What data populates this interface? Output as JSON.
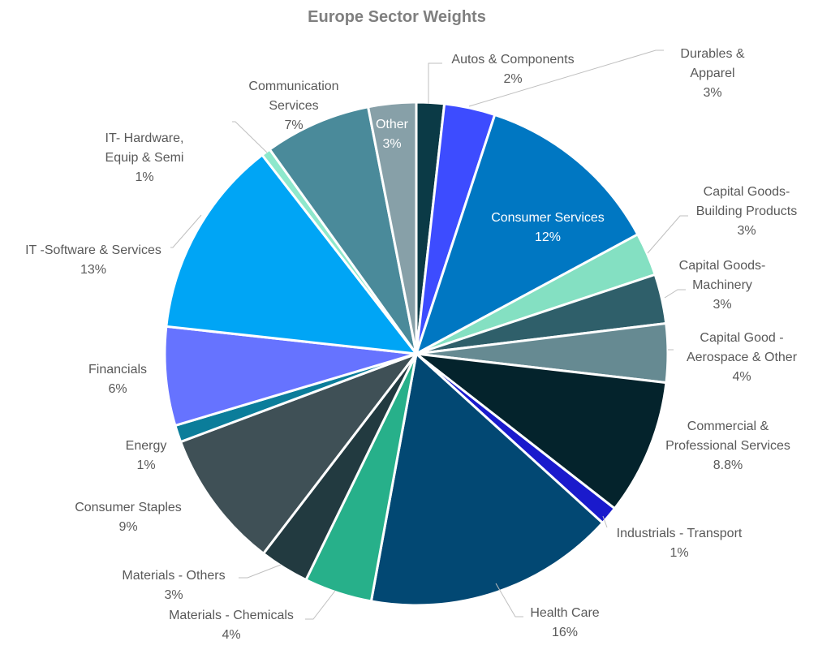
{
  "chart_data": {
    "type": "pie",
    "title": "Europe Sector Weights",
    "slices": [
      {
        "label": [
          "Autos & Components"
        ],
        "value_label": "2%",
        "value": 1.8,
        "color": "#0b3a46"
      },
      {
        "label": [
          "Durables &",
          "Apparel"
        ],
        "value_label": "3%",
        "value": 3.3,
        "color": "#3d4cff"
      },
      {
        "label": [
          "Consumer Services"
        ],
        "value_label": "12%",
        "value": 12.2,
        "color": "#0077c2"
      },
      {
        "label": [
          "Capital Goods-",
          "Building Products"
        ],
        "value_label": "3%",
        "value": 2.8,
        "color": "#84e0c2"
      },
      {
        "label": [
          "Capital Goods-",
          "Machinery"
        ],
        "value_label": "3%",
        "value": 3.2,
        "color": "#2f5f6a"
      },
      {
        "label": [
          "Capital Good -",
          "Aerospace & Other"
        ],
        "value_label": "4%",
        "value": 3.8,
        "color": "#668a92"
      },
      {
        "label": [
          "Commercial &",
          "Professional Services"
        ],
        "value_label": "8.8%",
        "value": 8.8,
        "color": "#04232c"
      },
      {
        "label": [
          "Industrials - Transport"
        ],
        "value_label": "1%",
        "value": 1.2,
        "color": "#1a1acc"
      },
      {
        "label": [
          "Health Care"
        ],
        "value_label": "16%",
        "value": 16.3,
        "color": "#024873"
      },
      {
        "label": [
          "Materials - Chemicals"
        ],
        "value_label": "4%",
        "value": 4.4,
        "color": "#27b08a"
      },
      {
        "label": [
          "Materials - Others"
        ],
        "value_label": "3%",
        "value": 3.2,
        "color": "#223a40"
      },
      {
        "label": [
          "Consumer Staples"
        ],
        "value_label": "9%",
        "value": 9.0,
        "color": "#3f5056"
      },
      {
        "label": [
          "Energy"
        ],
        "value_label": "1%",
        "value": 1.1,
        "color": "#0b7d9a"
      },
      {
        "label": [
          "Financials"
        ],
        "value_label": "6%",
        "value": 6.4,
        "color": "#6673ff"
      },
      {
        "label": [
          "IT -Software & Services"
        ],
        "value_label": "13%",
        "value": 12.9,
        "color": "#00a5f5"
      },
      {
        "label": [
          "IT- Hardware,",
          "Equip & Semi"
        ],
        "value_label": "1%",
        "value": 0.6,
        "color": "#8ee8cc"
      },
      {
        "label": [
          "Communication",
          "Services"
        ],
        "value_label": "7%",
        "value": 6.9,
        "color": "#4a8a9a"
      },
      {
        "label": [
          "Other"
        ],
        "value_label": "3%",
        "value": 3.1,
        "color": "#87a0a8"
      }
    ]
  }
}
